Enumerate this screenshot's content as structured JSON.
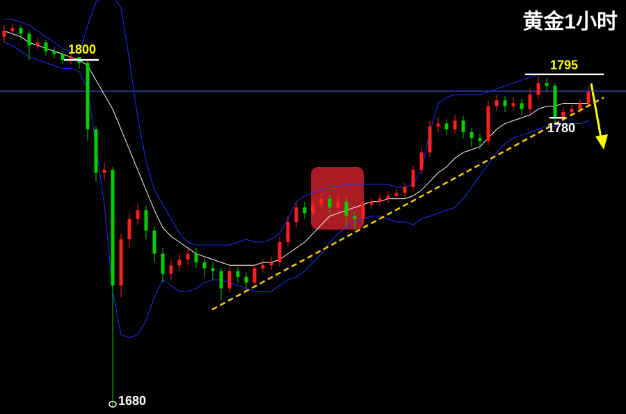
{
  "chart_data": {
    "type": "candlestick",
    "title": "黄金1小时",
    "up_color": "#ff2020",
    "down_color": "#00d000",
    "ylim": [
      1677.6,
      1820.7
    ],
    "open": [
      1808,
      1810,
      1811,
      1809,
      1805,
      1806,
      1803,
      1802,
      1800,
      1801,
      1799,
      1776,
      1761,
      1762,
      1722,
      1738,
      1745,
      1748,
      1741,
      1733,
      1726,
      1729,
      1731,
      1733,
      1730,
      1728,
      1727,
      1721,
      1727,
      1725,
      1723,
      1728,
      1729,
      1730,
      1737,
      1744,
      1749,
      1747,
      1750,
      1752,
      1749,
      1751,
      1746,
      1745,
      1750,
      1751,
      1752,
      1753,
      1754,
      1756,
      1762,
      1768,
      1777,
      1778,
      1776,
      1779,
      1775,
      1773,
      1772,
      1784,
      1786,
      1784,
      1785,
      1783,
      1788,
      1792,
      1791,
      1780,
      1782,
      1783,
      1785
    ],
    "high": [
      1812,
      1812.5,
      1812,
      1810,
      1807.5,
      1807,
      1804.5,
      1803,
      1802.5,
      1801,
      1800,
      1777,
      1764.5,
      1763,
      1740,
      1747,
      1750,
      1749.5,
      1742.5,
      1735,
      1731,
      1733,
      1735,
      1735,
      1731.5,
      1730,
      1728,
      1728.5,
      1728.5,
      1726.5,
      1729.5,
      1731,
      1732,
      1739,
      1746,
      1751,
      1751,
      1752,
      1754,
      1753.5,
      1753,
      1752.5,
      1747.5,
      1751.5,
      1752.5,
      1753.5,
      1754.5,
      1755.5,
      1757.5,
      1763.5,
      1770,
      1779,
      1780,
      1779.5,
      1781,
      1780.5,
      1776.5,
      1774.5,
      1786,
      1788,
      1787.5,
      1787,
      1786.5,
      1790,
      1794.5,
      1794,
      1792,
      1783.5,
      1784.5,
      1786.5,
      1791
    ],
    "low": [
      1806,
      1808.5,
      1807,
      1800,
      1803.5,
      1801.5,
      1800.5,
      1798.5,
      1798.5,
      1797,
      1772,
      1758,
      1758.5,
      1680,
      1718,
      1735,
      1743,
      1738,
      1730,
      1723,
      1724,
      1727,
      1729,
      1728,
      1725,
      1724,
      1717,
      1719.5,
      1723,
      1721,
      1721.5,
      1726.5,
      1727.5,
      1728.5,
      1735.5,
      1742,
      1745,
      1745.5,
      1748.5,
      1747,
      1747.5,
      1742,
      1741,
      1743.5,
      1748.5,
      1749.5,
      1750.5,
      1751.5,
      1752.5,
      1754.5,
      1760.5,
      1766.5,
      1775,
      1774,
      1774.5,
      1773,
      1770,
      1769,
      1770.5,
      1782.5,
      1782,
      1782.5,
      1781,
      1781.5,
      1786.5,
      1789,
      1778,
      1778.5,
      1780.5,
      1781.5,
      1783.5
    ],
    "close": [
      1810,
      1811,
      1809,
      1805,
      1806,
      1803,
      1802,
      1800,
      1801,
      1799,
      1776,
      1761,
      1762,
      1722,
      1738,
      1745,
      1748,
      1741,
      1733,
      1726,
      1729,
      1731,
      1733,
      1730,
      1728,
      1727,
      1721,
      1727,
      1725,
      1723,
      1728,
      1729,
      1730,
      1737,
      1744,
      1749,
      1747,
      1750,
      1752,
      1749,
      1751,
      1746,
      1745,
      1750,
      1751,
      1752,
      1753,
      1754,
      1756,
      1762,
      1768,
      1777,
      1778,
      1776,
      1779,
      1775,
      1773,
      1772,
      1784,
      1786,
      1784,
      1785,
      1783,
      1788,
      1792,
      1791,
      1780,
      1782,
      1783,
      1785,
      1789
    ],
    "bands": [
      {
        "color": "#ffffff",
        "values": [
          1810,
          1809,
          1808,
          1806,
          1805,
          1804,
          1803,
          1802,
          1801,
          1800,
          1798,
          1793,
          1788,
          1783,
          1776,
          1769,
          1762,
          1755,
          1748,
          1742,
          1739,
          1737,
          1735,
          1733,
          1732,
          1731,
          1730,
          1729,
          1729,
          1729,
          1729,
          1730,
          1730,
          1731,
          1733,
          1735,
          1737,
          1740,
          1743,
          1746,
          1747,
          1748,
          1749,
          1750,
          1751,
          1751,
          1752,
          1752,
          1752,
          1753,
          1755,
          1758,
          1761,
          1763,
          1766,
          1768,
          1769,
          1770,
          1773,
          1776,
          1778,
          1779,
          1780,
          1781,
          1783,
          1784,
          1784,
          1785,
          1785,
          1785,
          1785
        ]
      },
      {
        "color": "#2030ff",
        "values": [
          1814,
          1814,
          1813,
          1812,
          1810,
          1808,
          1806,
          1804,
          1803,
          1802,
          1812,
          1820,
          1822,
          1822,
          1818,
          1800,
          1780,
          1765,
          1755,
          1750,
          1745,
          1740,
          1737,
          1736,
          1736,
          1736,
          1736,
          1736,
          1737,
          1738,
          1737,
          1737,
          1738,
          1740,
          1745,
          1751,
          1753,
          1754,
          1755,
          1756,
          1756,
          1757,
          1757,
          1757,
          1757,
          1757,
          1757,
          1756,
          1756,
          1757,
          1762,
          1775,
          1785,
          1787,
          1788,
          1788,
          1788,
          1788,
          1789,
          1790,
          1791,
          1792,
          1793,
          1794,
          1795,
          1795,
          1795,
          1795,
          1795,
          1795,
          1795
        ]
      },
      {
        "color": "#2030ff",
        "values": [
          1806,
          1805,
          1803,
          1801,
          1800,
          1799,
          1798,
          1797,
          1797,
          1796,
          1790,
          1770,
          1750,
          1720,
          1705,
          1704,
          1705,
          1710,
          1718,
          1724,
          1722,
          1720,
          1720,
          1721,
          1723,
          1724,
          1724,
          1723,
          1722,
          1721,
          1720,
          1720,
          1720,
          1722,
          1724,
          1725,
          1727,
          1730,
          1733,
          1737,
          1740,
          1742,
          1744,
          1745,
          1746,
          1746,
          1745,
          1744,
          1744,
          1743,
          1745,
          1746,
          1747,
          1748,
          1749,
          1752,
          1756,
          1760,
          1764,
          1768,
          1771,
          1773,
          1774,
          1775,
          1776,
          1777,
          1777,
          1778,
          1778,
          1778,
          1779
        ]
      }
    ],
    "hline": {
      "value": 1789.2,
      "color": "#4a5cff"
    },
    "trendline": {
      "values": [
        1713.7,
        1787
      ],
      "color": "#ffcc00"
    },
    "levels": [
      {
        "value": 1800,
        "color": "#ffff00"
      },
      {
        "value": 1795,
        "color": "#ffff00"
      },
      {
        "value": 1780,
        "color": "#ffffff"
      },
      {
        "value": 1680,
        "color": "#ffffff"
      }
    ]
  }
}
